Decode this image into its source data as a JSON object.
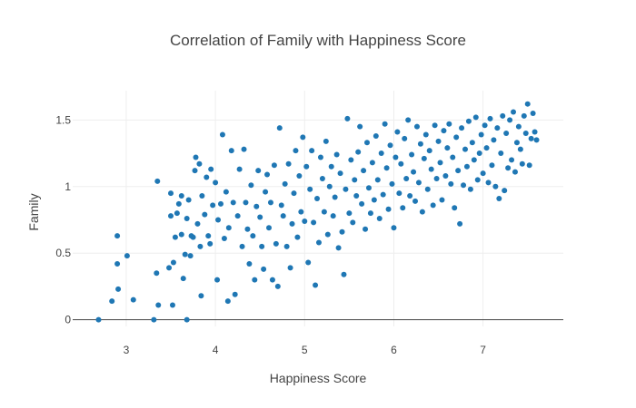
{
  "chart_data": {
    "type": "scatter",
    "title": "Correlation of Family with Happiness Score",
    "xlabel": "Happiness Score",
    "ylabel": "Family",
    "xlim": [
      2.4,
      7.9
    ],
    "ylim": [
      -0.05,
      1.72
    ],
    "x_ticks": [
      "3",
      "4",
      "5",
      "6",
      "7"
    ],
    "y_ticks": [
      "0",
      "0.5",
      "1",
      "1.5"
    ],
    "grid": true,
    "legend": "none",
    "marker_color": "#1f77b4",
    "points": [
      [
        2.69,
        0.0
      ],
      [
        2.84,
        0.14
      ],
      [
        2.9,
        0.63
      ],
      [
        2.9,
        0.42
      ],
      [
        2.91,
        0.23
      ],
      [
        3.01,
        0.48
      ],
      [
        3.08,
        0.15
      ],
      [
        3.31,
        0.0
      ],
      [
        3.34,
        0.35
      ],
      [
        3.35,
        1.04
      ],
      [
        3.36,
        0.11
      ],
      [
        3.48,
        0.39
      ],
      [
        3.5,
        0.78
      ],
      [
        3.5,
        0.95
      ],
      [
        3.52,
        0.11
      ],
      [
        3.53,
        0.43
      ],
      [
        3.55,
        0.62
      ],
      [
        3.57,
        0.8
      ],
      [
        3.59,
        0.87
      ],
      [
        3.62,
        0.64
      ],
      [
        3.62,
        0.93
      ],
      [
        3.64,
        0.31
      ],
      [
        3.66,
        0.49
      ],
      [
        3.68,
        0.0
      ],
      [
        3.68,
        0.76
      ],
      [
        3.7,
        0.9
      ],
      [
        3.72,
        0.48
      ],
      [
        3.73,
        0.63
      ],
      [
        3.75,
        0.62
      ],
      [
        3.77,
        1.12
      ],
      [
        3.78,
        1.22
      ],
      [
        3.8,
        0.72
      ],
      [
        3.82,
        1.17
      ],
      [
        3.83,
        0.55
      ],
      [
        3.84,
        0.18
      ],
      [
        3.85,
        0.93
      ],
      [
        3.88,
        0.79
      ],
      [
        3.9,
        1.07
      ],
      [
        3.92,
        0.63
      ],
      [
        3.94,
        0.57
      ],
      [
        3.95,
        1.13
      ],
      [
        3.97,
        0.86
      ],
      [
        4.0,
        1.03
      ],
      [
        4.02,
        0.3
      ],
      [
        4.03,
        0.75
      ],
      [
        4.06,
        0.87
      ],
      [
        4.08,
        1.39
      ],
      [
        4.1,
        0.61
      ],
      [
        4.12,
        0.96
      ],
      [
        4.14,
        0.14
      ],
      [
        4.15,
        0.69
      ],
      [
        4.18,
        1.27
      ],
      [
        4.2,
        0.88
      ],
      [
        4.22,
        0.19
      ],
      [
        4.25,
        0.78
      ],
      [
        4.27,
        1.13
      ],
      [
        4.3,
        0.55
      ],
      [
        4.32,
        1.28
      ],
      [
        4.34,
        0.88
      ],
      [
        4.36,
        0.68
      ],
      [
        4.38,
        0.42
      ],
      [
        4.4,
        1.01
      ],
      [
        4.42,
        0.63
      ],
      [
        4.44,
        0.3
      ],
      [
        4.46,
        0.85
      ],
      [
        4.48,
        1.12
      ],
      [
        4.5,
        0.77
      ],
      [
        4.52,
        0.55
      ],
      [
        4.54,
        0.38
      ],
      [
        4.56,
        0.96
      ],
      [
        4.58,
        1.09
      ],
      [
        4.6,
        0.69
      ],
      [
        4.62,
        0.88
      ],
      [
        4.64,
        0.3
      ],
      [
        4.66,
        1.16
      ],
      [
        4.68,
        0.57
      ],
      [
        4.7,
        0.25
      ],
      [
        4.72,
        1.44
      ],
      [
        4.74,
        0.86
      ],
      [
        4.76,
        0.78
      ],
      [
        4.78,
        1.02
      ],
      [
        4.8,
        0.55
      ],
      [
        4.82,
        1.17
      ],
      [
        4.84,
        0.39
      ],
      [
        4.86,
        0.72
      ],
      [
        4.88,
        0.95
      ],
      [
        4.9,
        1.27
      ],
      [
        4.92,
        0.62
      ],
      [
        4.94,
        1.08
      ],
      [
        4.96,
        0.81
      ],
      [
        4.98,
        1.37
      ],
      [
        5.0,
        0.74
      ],
      [
        5.02,
        1.15
      ],
      [
        5.04,
        0.43
      ],
      [
        5.06,
        0.98
      ],
      [
        5.08,
        1.27
      ],
      [
        5.1,
        0.73
      ],
      [
        5.12,
        0.26
      ],
      [
        5.14,
        0.91
      ],
      [
        5.16,
        0.58
      ],
      [
        5.18,
        1.22
      ],
      [
        5.2,
        1.06
      ],
      [
        5.22,
        0.81
      ],
      [
        5.24,
        1.34
      ],
      [
        5.26,
        0.64
      ],
      [
        5.28,
        1.0
      ],
      [
        5.3,
        1.15
      ],
      [
        5.32,
        0.78
      ],
      [
        5.34,
        0.92
      ],
      [
        5.36,
        1.24
      ],
      [
        5.38,
        0.54
      ],
      [
        5.4,
        1.1
      ],
      [
        5.42,
        0.66
      ],
      [
        5.44,
        0.34
      ],
      [
        5.46,
        0.98
      ],
      [
        5.48,
        1.51
      ],
      [
        5.5,
        0.8
      ],
      [
        5.52,
        1.2
      ],
      [
        5.54,
        0.73
      ],
      [
        5.56,
        1.05
      ],
      [
        5.58,
        0.93
      ],
      [
        5.6,
        1.26
      ],
      [
        5.62,
        1.45
      ],
      [
        5.64,
        0.87
      ],
      [
        5.66,
        1.12
      ],
      [
        5.68,
        0.68
      ],
      [
        5.7,
        1.33
      ],
      [
        5.72,
        0.99
      ],
      [
        5.74,
        0.8
      ],
      [
        5.76,
        1.18
      ],
      [
        5.78,
        0.9
      ],
      [
        5.8,
        1.38
      ],
      [
        5.82,
        1.05
      ],
      [
        5.84,
        0.76
      ],
      [
        5.86,
        1.25
      ],
      [
        5.88,
        0.94
      ],
      [
        5.9,
        1.47
      ],
      [
        5.92,
        1.14
      ],
      [
        5.94,
        0.83
      ],
      [
        5.96,
        1.31
      ],
      [
        5.98,
        1.02
      ],
      [
        6.0,
        0.69
      ],
      [
        6.02,
        1.22
      ],
      [
        6.04,
        1.41
      ],
      [
        6.06,
        0.95
      ],
      [
        6.08,
        1.17
      ],
      [
        6.1,
        0.84
      ],
      [
        6.12,
        1.36
      ],
      [
        6.14,
        1.06
      ],
      [
        6.16,
        1.5
      ],
      [
        6.18,
        0.93
      ],
      [
        6.2,
        1.24
      ],
      [
        6.22,
        1.11
      ],
      [
        6.24,
        0.89
      ],
      [
        6.26,
        1.45
      ],
      [
        6.28,
        1.03
      ],
      [
        6.3,
        1.32
      ],
      [
        6.32,
        0.81
      ],
      [
        6.34,
        1.21
      ],
      [
        6.36,
        1.39
      ],
      [
        6.38,
        0.98
      ],
      [
        6.4,
        1.27
      ],
      [
        6.42,
        1.13
      ],
      [
        6.44,
        0.86
      ],
      [
        6.46,
        1.46
      ],
      [
        6.48,
        1.06
      ],
      [
        6.5,
        1.34
      ],
      [
        6.52,
        1.18
      ],
      [
        6.54,
        0.9
      ],
      [
        6.56,
        1.42
      ],
      [
        6.58,
        1.08
      ],
      [
        6.6,
        1.29
      ],
      [
        6.62,
        1.47
      ],
      [
        6.64,
        1.02
      ],
      [
        6.66,
        1.22
      ],
      [
        6.68,
        0.84
      ],
      [
        6.7,
        1.37
      ],
      [
        6.72,
        1.12
      ],
      [
        6.74,
        0.72
      ],
      [
        6.76,
        1.44
      ],
      [
        6.78,
        1.01
      ],
      [
        6.8,
        1.28
      ],
      [
        6.82,
        1.15
      ],
      [
        6.84,
        1.49
      ],
      [
        6.86,
        0.98
      ],
      [
        6.88,
        1.33
      ],
      [
        6.9,
        1.2
      ],
      [
        6.92,
        1.52
      ],
      [
        6.94,
        1.05
      ],
      [
        6.96,
        1.25
      ],
      [
        6.98,
        1.39
      ],
      [
        7.0,
        1.1
      ],
      [
        7.02,
        1.46
      ],
      [
        7.04,
        1.29
      ],
      [
        7.06,
        1.03
      ],
      [
        7.08,
        1.51
      ],
      [
        7.1,
        1.16
      ],
      [
        7.12,
        1.35
      ],
      [
        7.14,
        1.0
      ],
      [
        7.16,
        1.44
      ],
      [
        7.18,
        0.91
      ],
      [
        7.2,
        1.25
      ],
      [
        7.22,
        1.53
      ],
      [
        7.24,
        0.97
      ],
      [
        7.26,
        1.4
      ],
      [
        7.28,
        1.14
      ],
      [
        7.3,
        1.5
      ],
      [
        7.32,
        1.2
      ],
      [
        7.34,
        1.56
      ],
      [
        7.36,
        1.11
      ],
      [
        7.38,
        1.33
      ],
      [
        7.4,
        1.45
      ],
      [
        7.42,
        1.28
      ],
      [
        7.44,
        1.17
      ],
      [
        7.46,
        1.53
      ],
      [
        7.48,
        1.4
      ],
      [
        7.5,
        1.62
      ],
      [
        7.52,
        1.16
      ],
      [
        7.54,
        1.36
      ],
      [
        7.56,
        1.55
      ],
      [
        7.58,
        1.41
      ],
      [
        7.6,
        1.35
      ]
    ]
  }
}
